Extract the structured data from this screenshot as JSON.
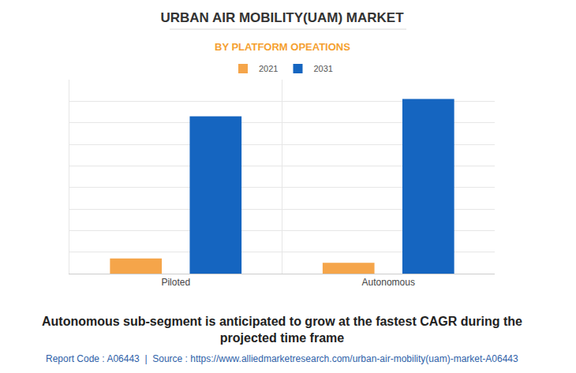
{
  "chart_data": {
    "type": "bar",
    "title": "URBAN AIR MOBILITY(UAM) MARKET",
    "subtitle": "BY PLATFORM OPEATIONS",
    "categories": [
      "Piloted",
      "Autonomous"
    ],
    "series": [
      {
        "name": "2021",
        "color": "#f5a54a",
        "values": [
          0.7,
          0.5
        ]
      },
      {
        "name": "2031",
        "color": "#1565c0",
        "values": [
          7.3,
          8.1
        ]
      }
    ],
    "ylim": [
      0,
      9
    ],
    "yticks": [
      0,
      1,
      2,
      3,
      4,
      5,
      6,
      7,
      8,
      9
    ],
    "grid": true,
    "tick_labels": "x",
    "legend": "top",
    "annotations": [
      "Autonomous sub-segment is anticipated to grow at the fastest CAGR during the projected time frame",
      "Report Code : A06443  |  Source : https://www.alliedmarketresearch.com/urban-air-mobility(uam)-market-A06443"
    ]
  }
}
